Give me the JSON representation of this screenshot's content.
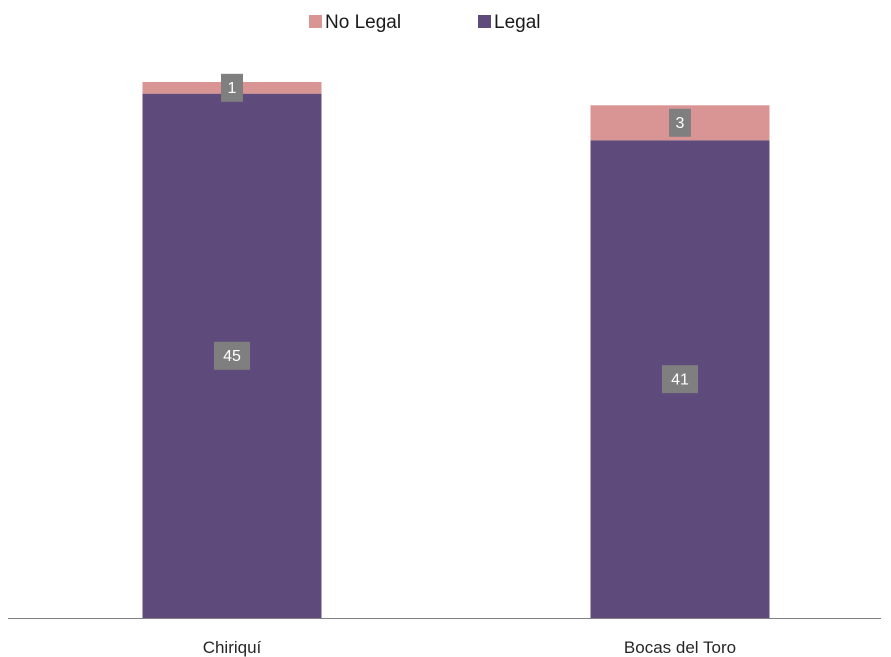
{
  "chart_data": {
    "type": "bar",
    "stacked": true,
    "categories": [
      "Chiriquí",
      "Bocas del Toro"
    ],
    "series": [
      {
        "name": "Legal",
        "values": [
          45,
          41
        ],
        "color": "#5f4b7b"
      },
      {
        "name": "No Legal",
        "values": [
          1,
          3
        ],
        "color": "#d99594"
      }
    ],
    "title": "",
    "xlabel": "",
    "ylabel": "",
    "grid": false,
    "legend": "top-center",
    "data_labels": true,
    "data_label_bg": "#7f7f7f",
    "axis_color": "#808080"
  }
}
